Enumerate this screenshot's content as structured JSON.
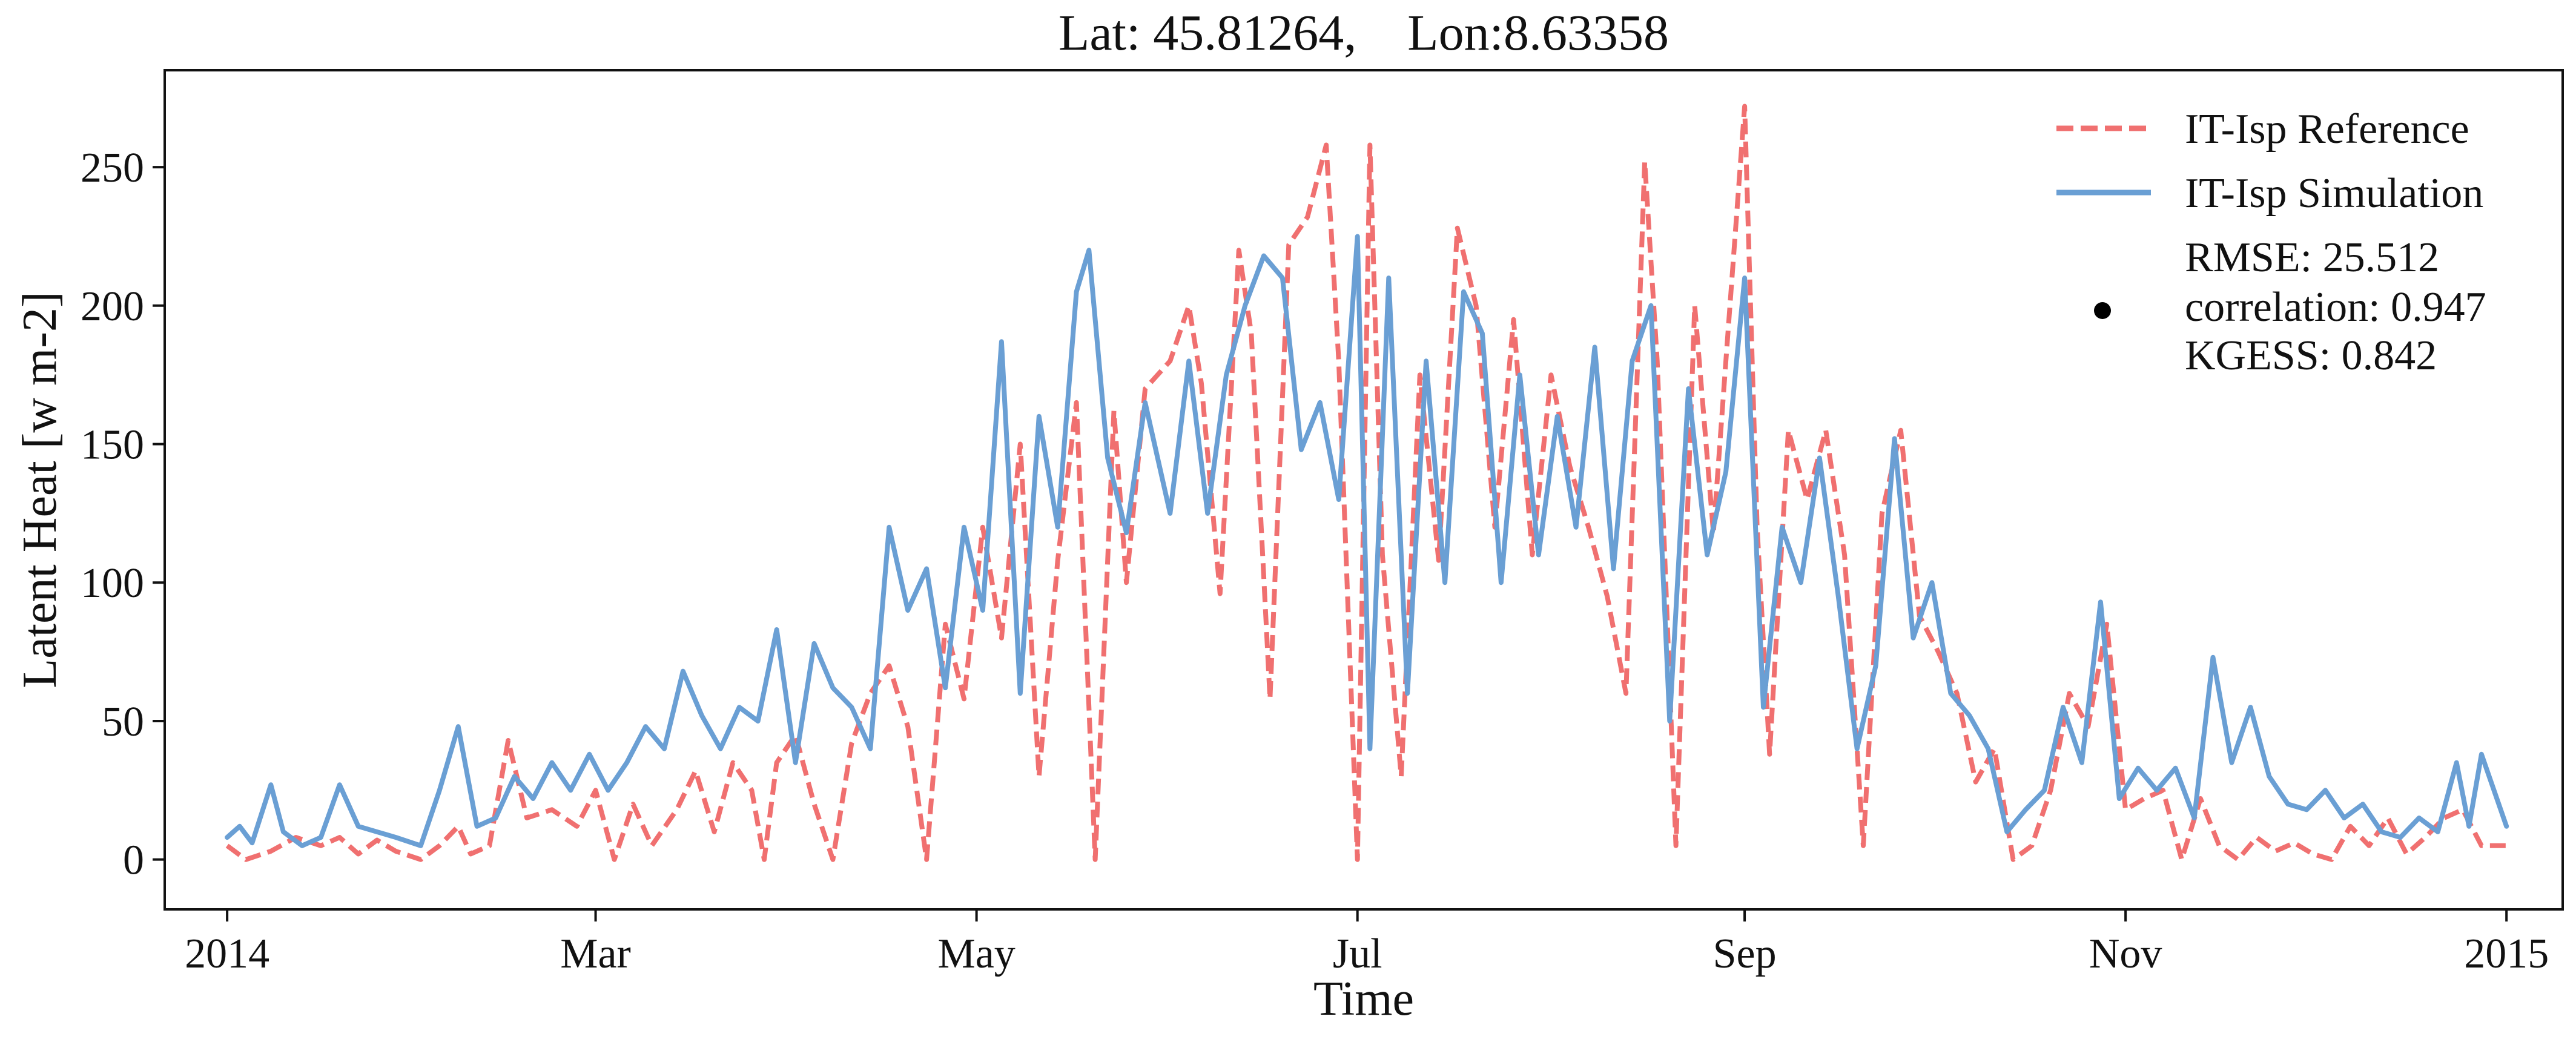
{
  "chart_data": {
    "type": "line",
    "title": "Lat: 45.81264,    Lon:8.63358",
    "xlabel": "Time",
    "ylabel": "Latent Heat [w m-2]",
    "xlim": [
      "2013-12-22",
      "2015-01-10"
    ],
    "ylim": [
      -18,
      285
    ],
    "yticks": [
      0,
      50,
      100,
      150,
      200,
      250
    ],
    "xticks": [
      {
        "date": "2014-01-01",
        "label": "2014"
      },
      {
        "date": "2014-03-01",
        "label": "Mar"
      },
      {
        "date": "2014-05-01",
        "label": "May"
      },
      {
        "date": "2014-07-01",
        "label": "Jul"
      },
      {
        "date": "2014-09-01",
        "label": "Sep"
      },
      {
        "date": "2014-11-01",
        "label": "Nov"
      },
      {
        "date": "2015-01-01",
        "label": "2015"
      }
    ],
    "grid": false,
    "legend_position": "top-right",
    "stats_text": [
      "RMSE: 25.512",
      "correlation: 0.947",
      "KGESS: 0.842"
    ],
    "series": [
      {
        "name": "IT-Isp Reference",
        "color": "#f07070",
        "dash": true,
        "points": [
          [
            "2014-01-01",
            5
          ],
          [
            "2014-01-04",
            0
          ],
          [
            "2014-01-08",
            3
          ],
          [
            "2014-01-12",
            8
          ],
          [
            "2014-01-16",
            5
          ],
          [
            "2014-01-19",
            8
          ],
          [
            "2014-01-22",
            2
          ],
          [
            "2014-01-25",
            7
          ],
          [
            "2014-01-28",
            3
          ],
          [
            "2014-02-01",
            0
          ],
          [
            "2014-02-04",
            5
          ],
          [
            "2014-02-07",
            12
          ],
          [
            "2014-02-09",
            2
          ],
          [
            "2014-02-12",
            5
          ],
          [
            "2014-02-15",
            43
          ],
          [
            "2014-02-18",
            15
          ],
          [
            "2014-02-22",
            18
          ],
          [
            "2014-02-26",
            12
          ],
          [
            "2014-03-01",
            25
          ],
          [
            "2014-03-04",
            0
          ],
          [
            "2014-03-07",
            20
          ],
          [
            "2014-03-10",
            5
          ],
          [
            "2014-03-14",
            18
          ],
          [
            "2014-03-17",
            32
          ],
          [
            "2014-03-20",
            10
          ],
          [
            "2014-03-23",
            35
          ],
          [
            "2014-03-26",
            25
          ],
          [
            "2014-03-28",
            0
          ],
          [
            "2014-03-30",
            35
          ],
          [
            "2014-04-02",
            45
          ],
          [
            "2014-04-05",
            20
          ],
          [
            "2014-04-08",
            0
          ],
          [
            "2014-04-11",
            42
          ],
          [
            "2014-04-14",
            60
          ],
          [
            "2014-04-17",
            70
          ],
          [
            "2014-04-20",
            48
          ],
          [
            "2014-04-23",
            0
          ],
          [
            "2014-04-26",
            85
          ],
          [
            "2014-04-29",
            58
          ],
          [
            "2014-05-02",
            120
          ],
          [
            "2014-05-05",
            80
          ],
          [
            "2014-05-08",
            150
          ],
          [
            "2014-05-11",
            30
          ],
          [
            "2014-05-14",
            108
          ],
          [
            "2014-05-17",
            165
          ],
          [
            "2014-05-20",
            0
          ],
          [
            "2014-05-23",
            162
          ],
          [
            "2014-05-25",
            100
          ],
          [
            "2014-05-28",
            170
          ],
          [
            "2014-06-01",
            180
          ],
          [
            "2014-06-04",
            200
          ],
          [
            "2014-06-06",
            172
          ],
          [
            "2014-06-09",
            96
          ],
          [
            "2014-06-12",
            220
          ],
          [
            "2014-06-14",
            190
          ],
          [
            "2014-06-17",
            58
          ],
          [
            "2014-06-20",
            222
          ],
          [
            "2014-06-23",
            232
          ],
          [
            "2014-06-26",
            258
          ],
          [
            "2014-06-28",
            180
          ],
          [
            "2014-07-01",
            0
          ],
          [
            "2014-07-03",
            258
          ],
          [
            "2014-07-05",
            110
          ],
          [
            "2014-07-08",
            30
          ],
          [
            "2014-07-11",
            175
          ],
          [
            "2014-07-14",
            108
          ],
          [
            "2014-07-17",
            228
          ],
          [
            "2014-07-20",
            200
          ],
          [
            "2014-07-23",
            120
          ],
          [
            "2014-07-26",
            195
          ],
          [
            "2014-07-29",
            110
          ],
          [
            "2014-08-01",
            175
          ],
          [
            "2014-08-04",
            142
          ],
          [
            "2014-08-07",
            120
          ],
          [
            "2014-08-10",
            95
          ],
          [
            "2014-08-13",
            60
          ],
          [
            "2014-08-16",
            252
          ],
          [
            "2014-08-18",
            180
          ],
          [
            "2014-08-21",
            5
          ],
          [
            "2014-08-24",
            200
          ],
          [
            "2014-08-27",
            118
          ],
          [
            "2014-08-29",
            180
          ],
          [
            "2014-09-01",
            272
          ],
          [
            "2014-09-03",
            120
          ],
          [
            "2014-09-05",
            38
          ],
          [
            "2014-09-08",
            155
          ],
          [
            "2014-09-11",
            130
          ],
          [
            "2014-09-14",
            155
          ],
          [
            "2014-09-17",
            110
          ],
          [
            "2014-09-20",
            5
          ],
          [
            "2014-09-23",
            125
          ],
          [
            "2014-09-26",
            155
          ],
          [
            "2014-09-29",
            88
          ],
          [
            "2014-10-02",
            75
          ],
          [
            "2014-10-05",
            60
          ],
          [
            "2014-10-08",
            28
          ],
          [
            "2014-10-11",
            40
          ],
          [
            "2014-10-14",
            0
          ],
          [
            "2014-10-17",
            5
          ],
          [
            "2014-10-20",
            25
          ],
          [
            "2014-10-23",
            60
          ],
          [
            "2014-10-26",
            48
          ],
          [
            "2014-10-29",
            85
          ],
          [
            "2014-11-01",
            18
          ],
          [
            "2014-11-04",
            22
          ],
          [
            "2014-11-07",
            25
          ],
          [
            "2014-11-10",
            0
          ],
          [
            "2014-11-13",
            22
          ],
          [
            "2014-11-16",
            5
          ],
          [
            "2014-11-19",
            0
          ],
          [
            "2014-11-22",
            8
          ],
          [
            "2014-11-25",
            3
          ],
          [
            "2014-11-28",
            6
          ],
          [
            "2014-12-01",
            2
          ],
          [
            "2014-12-04",
            0
          ],
          [
            "2014-12-07",
            12
          ],
          [
            "2014-12-10",
            5
          ],
          [
            "2014-12-13",
            15
          ],
          [
            "2014-12-16",
            2
          ],
          [
            "2014-12-19",
            8
          ],
          [
            "2014-12-22",
            15
          ],
          [
            "2014-12-25",
            18
          ],
          [
            "2014-12-28",
            5
          ],
          [
            "2015-01-01",
            5
          ]
        ]
      },
      {
        "name": "IT-Isp Simulation",
        "color": "#6a9fd4",
        "dash": false,
        "points": [
          [
            "2014-01-01",
            8
          ],
          [
            "2014-01-03",
            12
          ],
          [
            "2014-01-05",
            6
          ],
          [
            "2014-01-08",
            27
          ],
          [
            "2014-01-10",
            10
          ],
          [
            "2014-01-13",
            5
          ],
          [
            "2014-01-16",
            8
          ],
          [
            "2014-01-19",
            27
          ],
          [
            "2014-01-22",
            12
          ],
          [
            "2014-01-25",
            10
          ],
          [
            "2014-01-28",
            8
          ],
          [
            "2014-02-01",
            5
          ],
          [
            "2014-02-04",
            25
          ],
          [
            "2014-02-07",
            48
          ],
          [
            "2014-02-10",
            12
          ],
          [
            "2014-02-13",
            15
          ],
          [
            "2014-02-16",
            30
          ],
          [
            "2014-02-19",
            22
          ],
          [
            "2014-02-22",
            35
          ],
          [
            "2014-02-25",
            25
          ],
          [
            "2014-02-28",
            38
          ],
          [
            "2014-03-03",
            25
          ],
          [
            "2014-03-06",
            35
          ],
          [
            "2014-03-09",
            48
          ],
          [
            "2014-03-12",
            40
          ],
          [
            "2014-03-15",
            68
          ],
          [
            "2014-03-18",
            52
          ],
          [
            "2014-03-21",
            40
          ],
          [
            "2014-03-24",
            55
          ],
          [
            "2014-03-27",
            50
          ],
          [
            "2014-03-30",
            83
          ],
          [
            "2014-04-02",
            35
          ],
          [
            "2014-04-05",
            78
          ],
          [
            "2014-04-08",
            62
          ],
          [
            "2014-04-11",
            55
          ],
          [
            "2014-04-14",
            40
          ],
          [
            "2014-04-17",
            120
          ],
          [
            "2014-04-20",
            90
          ],
          [
            "2014-04-23",
            105
          ],
          [
            "2014-04-26",
            62
          ],
          [
            "2014-04-29",
            120
          ],
          [
            "2014-05-02",
            90
          ],
          [
            "2014-05-05",
            187
          ],
          [
            "2014-05-08",
            60
          ],
          [
            "2014-05-11",
            160
          ],
          [
            "2014-05-14",
            120
          ],
          [
            "2014-05-17",
            205
          ],
          [
            "2014-05-19",
            220
          ],
          [
            "2014-05-22",
            145
          ],
          [
            "2014-05-25",
            118
          ],
          [
            "2014-05-28",
            165
          ],
          [
            "2014-06-01",
            125
          ],
          [
            "2014-06-04",
            180
          ],
          [
            "2014-06-07",
            125
          ],
          [
            "2014-06-10",
            175
          ],
          [
            "2014-06-13",
            200
          ],
          [
            "2014-06-16",
            218
          ],
          [
            "2014-06-19",
            210
          ],
          [
            "2014-06-22",
            148
          ],
          [
            "2014-06-25",
            165
          ],
          [
            "2014-06-28",
            130
          ],
          [
            "2014-07-01",
            225
          ],
          [
            "2014-07-03",
            40
          ],
          [
            "2014-07-06",
            210
          ],
          [
            "2014-07-09",
            60
          ],
          [
            "2014-07-12",
            180
          ],
          [
            "2014-07-15",
            100
          ],
          [
            "2014-07-18",
            205
          ],
          [
            "2014-07-21",
            190
          ],
          [
            "2014-07-24",
            100
          ],
          [
            "2014-07-27",
            175
          ],
          [
            "2014-07-30",
            110
          ],
          [
            "2014-08-02",
            160
          ],
          [
            "2014-08-05",
            120
          ],
          [
            "2014-08-08",
            185
          ],
          [
            "2014-08-11",
            105
          ],
          [
            "2014-08-14",
            180
          ],
          [
            "2014-08-17",
            200
          ],
          [
            "2014-08-20",
            50
          ],
          [
            "2014-08-23",
            170
          ],
          [
            "2014-08-26",
            110
          ],
          [
            "2014-08-29",
            140
          ],
          [
            "2014-09-01",
            210
          ],
          [
            "2014-09-04",
            55
          ],
          [
            "2014-09-07",
            120
          ],
          [
            "2014-09-10",
            100
          ],
          [
            "2014-09-13",
            145
          ],
          [
            "2014-09-16",
            95
          ],
          [
            "2014-09-19",
            40
          ],
          [
            "2014-09-22",
            70
          ],
          [
            "2014-09-25",
            152
          ],
          [
            "2014-09-28",
            80
          ],
          [
            "2014-10-01",
            100
          ],
          [
            "2014-10-04",
            60
          ],
          [
            "2014-10-07",
            52
          ],
          [
            "2014-10-10",
            40
          ],
          [
            "2014-10-13",
            10
          ],
          [
            "2014-10-16",
            18
          ],
          [
            "2014-10-19",
            25
          ],
          [
            "2014-10-22",
            55
          ],
          [
            "2014-10-25",
            35
          ],
          [
            "2014-10-28",
            93
          ],
          [
            "2014-10-31",
            22
          ],
          [
            "2014-11-03",
            33
          ],
          [
            "2014-11-06",
            25
          ],
          [
            "2014-11-09",
            33
          ],
          [
            "2014-11-12",
            15
          ],
          [
            "2014-11-15",
            73
          ],
          [
            "2014-11-18",
            35
          ],
          [
            "2014-11-21",
            55
          ],
          [
            "2014-11-24",
            30
          ],
          [
            "2014-11-27",
            20
          ],
          [
            "2014-11-30",
            18
          ],
          [
            "2014-12-03",
            25
          ],
          [
            "2014-12-06",
            15
          ],
          [
            "2014-12-09",
            20
          ],
          [
            "2014-12-12",
            10
          ],
          [
            "2014-12-15",
            8
          ],
          [
            "2014-12-18",
            15
          ],
          [
            "2014-12-21",
            10
          ],
          [
            "2014-12-24",
            35
          ],
          [
            "2014-12-26",
            12
          ],
          [
            "2014-12-28",
            38
          ],
          [
            "2015-01-01",
            12
          ]
        ]
      }
    ]
  }
}
